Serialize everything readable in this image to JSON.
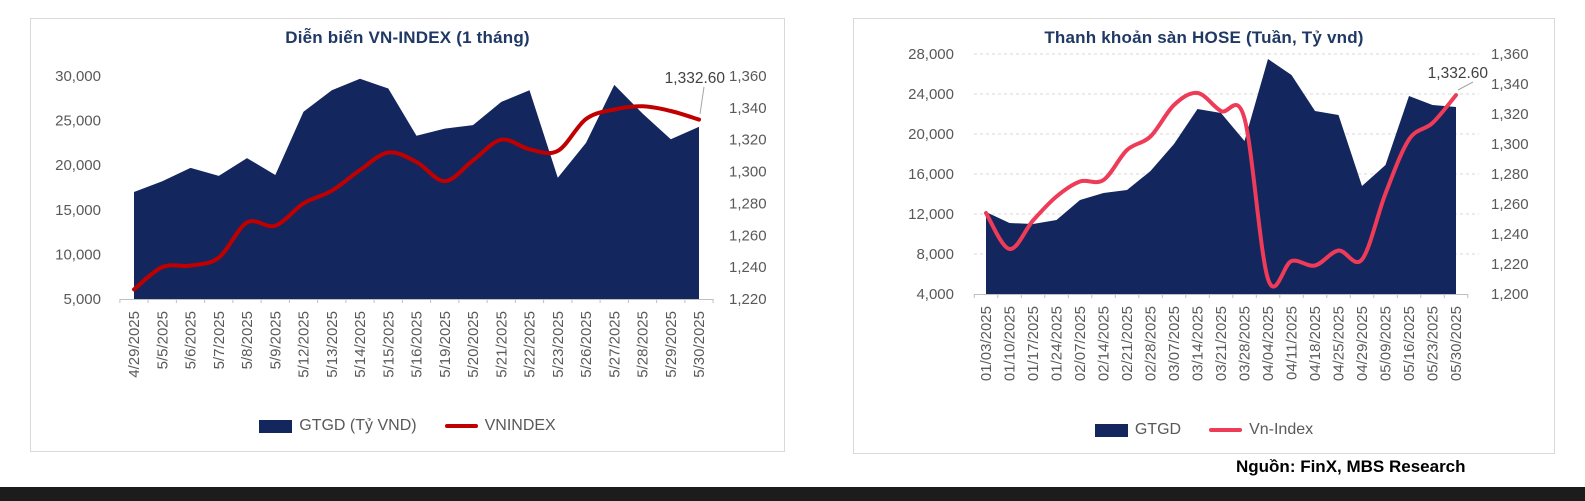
{
  "page": {
    "source_note": "Nguồn: FinX, MBS Research"
  },
  "chart_data": [
    {
      "type": "area+line",
      "title": "Diễn biến VN-INDEX (1 tháng)",
      "gridlines": false,
      "legend_position": "bottom",
      "categories": [
        "4/29/2025",
        "5/5/2025",
        "5/6/2025",
        "5/7/2025",
        "5/8/2025",
        "5/9/2025",
        "5/12/2025",
        "5/13/2025",
        "5/14/2025",
        "5/15/2025",
        "5/16/2025",
        "5/19/2025",
        "5/20/2025",
        "5/21/2025",
        "5/22/2025",
        "5/23/2025",
        "5/26/2025",
        "5/27/2025",
        "5/28/2025",
        "5/29/2025",
        "5/30/2025"
      ],
      "series": [
        {
          "id": "gtgd",
          "name": "GTGD (Tỷ VND)",
          "type": "area",
          "axis": "left",
          "color": "#13265e",
          "values": [
            17000,
            18200,
            19700,
            18800,
            20800,
            18900,
            26000,
            28400,
            29700,
            28600,
            23300,
            24100,
            24500,
            27100,
            28400,
            18600,
            22500,
            29000,
            25800,
            22900,
            24300
          ]
        },
        {
          "id": "vnindex",
          "name": "VNINDEX",
          "type": "line",
          "axis": "right",
          "color": "#c00000",
          "values": [
            1226,
            1240,
            1241,
            1246,
            1268,
            1266,
            1280,
            1288,
            1301,
            1312,
            1306,
            1294,
            1307,
            1320,
            1314,
            1313,
            1333,
            1339,
            1341,
            1338,
            1332.6
          ]
        }
      ],
      "left_axis": {
        "min": 5000,
        "max": 30000,
        "step": 5000,
        "ticks": [
          "5,000",
          "10,000",
          "15,000",
          "20,000",
          "25,000",
          "30,000"
        ]
      },
      "right_axis": {
        "min": 1220,
        "max": 1360,
        "step": 20,
        "ticks": [
          "1,220",
          "1,240",
          "1,260",
          "1,280",
          "1,300",
          "1,320",
          "1,340",
          "1,360"
        ]
      },
      "annotation": {
        "text": "1,332.60",
        "series": "vnindex",
        "point_index": 20
      }
    },
    {
      "type": "area+line",
      "title": "Thanh khoản sàn HOSE (Tuần, Tỷ vnd)",
      "gridlines": true,
      "legend_position": "bottom",
      "categories": [
        "01/03/2025",
        "01/10/2025",
        "01/17/2025",
        "01/24/2025",
        "02/07/2025",
        "02/14/2025",
        "02/21/2025",
        "02/28/2025",
        "03/07/2025",
        "03/14/2025",
        "03/21/2025",
        "03/28/2025",
        "04/04/2025",
        "04/11/2025",
        "04/18/2025",
        "04/25/2025",
        "04/29/2025",
        "05/09/2025",
        "05/16/2025",
        "05/23/2025",
        "05/30/2025"
      ],
      "series": [
        {
          "id": "gtgd",
          "name": "GTGD",
          "type": "area",
          "axis": "left",
          "color": "#13265e",
          "values": [
            12200,
            11100,
            11000,
            11400,
            13400,
            14100,
            14400,
            16300,
            19000,
            22500,
            22100,
            19300,
            27500,
            25900,
            22300,
            21900,
            14800,
            16900,
            23800,
            22900,
            22700
          ]
        },
        {
          "id": "vn-index",
          "name": "Vn-Index",
          "type": "line",
          "axis": "right",
          "color": "#ee3b57",
          "values": [
            1254,
            1230,
            1249,
            1265,
            1275,
            1276,
            1296,
            1305,
            1326,
            1334,
            1322,
            1317,
            1210,
            1222,
            1219,
            1229,
            1223,
            1267,
            1303,
            1314,
            1332.6
          ]
        }
      ],
      "left_axis": {
        "min": 4000,
        "max": 28000,
        "step": 4000,
        "ticks": [
          "4,000",
          "8,000",
          "12,000",
          "16,000",
          "20,000",
          "24,000",
          "28,000"
        ]
      },
      "right_axis": {
        "min": 1200,
        "max": 1360,
        "step": 20,
        "ticks": [
          "1,200",
          "1,220",
          "1,240",
          "1,260",
          "1,280",
          "1,300",
          "1,320",
          "1,340",
          "1,360"
        ]
      },
      "annotation": {
        "text": "1,332.60",
        "series": "vn-index",
        "point_index": 20
      }
    }
  ],
  "colors": {
    "area_navy": "#13265e",
    "vnindex_red": "#c00000",
    "vnindex_pink": "#ee3b57",
    "axis_text": "#595959",
    "title_navy": "#1f3864",
    "gridline": "#d9d9d9"
  }
}
